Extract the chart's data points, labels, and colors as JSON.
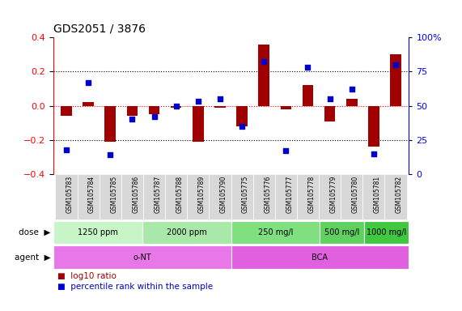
{
  "title": "GDS2051 / 3876",
  "samples": [
    "GSM105783",
    "GSM105784",
    "GSM105785",
    "GSM105786",
    "GSM105787",
    "GSM105788",
    "GSM105789",
    "GSM105790",
    "GSM105775",
    "GSM105776",
    "GSM105777",
    "GSM105778",
    "GSM105779",
    "GSM105780",
    "GSM105781",
    "GSM105782"
  ],
  "log10_ratio": [
    -0.06,
    0.02,
    -0.21,
    -0.06,
    -0.05,
    -0.01,
    -0.21,
    -0.01,
    -0.12,
    0.36,
    -0.02,
    0.12,
    -0.09,
    0.04,
    -0.24,
    0.3
  ],
  "percentile_rank": [
    18,
    67,
    14,
    40,
    42,
    50,
    53,
    55,
    35,
    82,
    17,
    78,
    55,
    62,
    15,
    80
  ],
  "bar_color": "#a00000",
  "dot_color": "#0000cc",
  "ylim_left": [
    -0.4,
    0.4
  ],
  "ylim_right": [
    0,
    100
  ],
  "yticks_left": [
    -0.4,
    -0.2,
    0.0,
    0.2,
    0.4
  ],
  "yticks_right": [
    0,
    25,
    50,
    75,
    100
  ],
  "ytick_labels_right": [
    "0",
    "25",
    "50",
    "75",
    "100%"
  ],
  "hlines": [
    -0.2,
    0.0,
    0.2
  ],
  "dose_groups": [
    {
      "label": "1250 ppm",
      "start": 0,
      "end": 4,
      "color": "#c8f5c8"
    },
    {
      "label": "2000 ppm",
      "start": 4,
      "end": 8,
      "color": "#a8e8a8"
    },
    {
      "label": "250 mg/l",
      "start": 8,
      "end": 12,
      "color": "#80e080"
    },
    {
      "label": "500 mg/l",
      "start": 12,
      "end": 14,
      "color": "#60d060"
    },
    {
      "label": "1000 mg/l",
      "start": 14,
      "end": 16,
      "color": "#40c840"
    }
  ],
  "agent_groups": [
    {
      "label": "o-NT",
      "start": 0,
      "end": 8,
      "color": "#e878e8"
    },
    {
      "label": "BCA",
      "start": 8,
      "end": 16,
      "color": "#e060e0"
    }
  ],
  "dose_label": "dose",
  "agent_label": "agent",
  "legend_bar_label": "log10 ratio",
  "legend_dot_label": "percentile rank within the sample",
  "background_color": "#ffffff",
  "plot_bg_color": "#ffffff",
  "sample_label_bg": "#d8d8d8",
  "title_fontsize": 10,
  "tick_fontsize": 8,
  "bar_width": 0.5
}
